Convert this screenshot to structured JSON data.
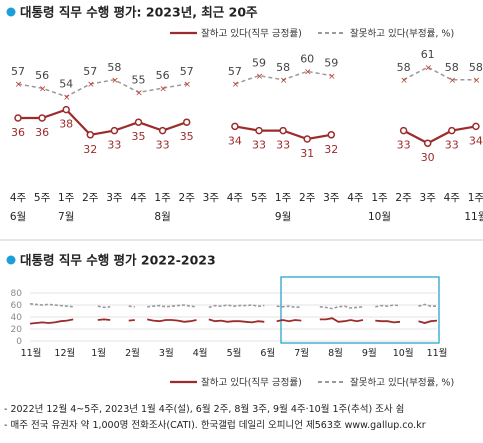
{
  "chart_data": [
    {
      "type": "line",
      "title": "대통령 직무 수행 평가: 2023년, 최근 20주",
      "x": [
        "4주",
        "5주",
        "1주",
        "2주",
        "3주",
        "4주",
        "1주",
        "2주",
        "3주",
        "4주",
        "5주",
        "1주",
        "2주",
        "3주",
        "4주",
        "1주",
        "2주",
        "3주",
        "4주",
        "1주"
      ],
      "x_months": [
        {
          "label": "6월",
          "index": 0
        },
        {
          "label": "7월",
          "index": 2
        },
        {
          "label": "8월",
          "index": 6
        },
        {
          "label": "9월",
          "index": 11
        },
        {
          "label": "10월",
          "index": 15
        },
        {
          "label": "11월",
          "index": 19
        }
      ],
      "series": [
        {
          "name": "잘하고 있다(직무 긍정률)",
          "color": "#9c2b2b",
          "style": "solid",
          "values": [
            36,
            36,
            38,
            32,
            33,
            35,
            33,
            35,
            null,
            34,
            33,
            33,
            31,
            32,
            null,
            null,
            33,
            30,
            33,
            34
          ]
        },
        {
          "name": "잘못하고 있다(부정률, %)",
          "color": "#9a9a9a",
          "style": "dashed",
          "values": [
            57,
            56,
            54,
            57,
            58,
            55,
            56,
            57,
            null,
            57,
            59,
            58,
            60,
            59,
            null,
            null,
            58,
            61,
            58,
            58
          ]
        }
      ]
    },
    {
      "type": "line",
      "title": "대통령 직무 수행 평가 2022-2023",
      "x_ticks": [
        "11월",
        "12월",
        "1월",
        "2월",
        "3월",
        "4월",
        "5월",
        "6월",
        "7월",
        "8월",
        "9월",
        "10월",
        "11월"
      ],
      "ylim": [
        0,
        80
      ],
      "y_ticks": [
        0,
        20,
        40,
        60,
        80
      ],
      "grid": true,
      "highlight": "최근 20주",
      "series": [
        {
          "name": "잘하고 있다(직무 긍정률)",
          "color": "#9c2b2b",
          "style": "solid",
          "values": [
            29,
            30,
            31,
            30,
            31,
            33,
            34,
            36,
            null,
            36,
            null,
            35,
            36,
            35,
            null,
            null,
            34,
            35,
            null,
            36,
            34,
            33,
            35,
            35,
            34,
            32,
            33,
            35,
            null,
            36,
            33,
            34,
            32,
            33,
            33,
            32,
            31,
            33,
            32,
            null,
            33,
            35,
            33,
            35,
            34,
            null,
            null,
            36,
            36,
            38,
            32,
            33,
            35,
            33,
            35,
            null,
            34,
            33,
            33,
            31,
            32,
            null,
            null,
            33,
            30,
            33,
            34
          ]
        },
        {
          "name": "잘못하고 있다(부정률, %)",
          "color": "#9a9a9a",
          "style": "dashed",
          "values": [
            62,
            61,
            60,
            61,
            60,
            59,
            58,
            57,
            null,
            55,
            null,
            58,
            56,
            57,
            null,
            null,
            58,
            57,
            null,
            57,
            58,
            59,
            57,
            58,
            59,
            60,
            58,
            57,
            null,
            56,
            59,
            58,
            60,
            58,
            59,
            59,
            60,
            58,
            59,
            null,
            58,
            57,
            58,
            56,
            57,
            null,
            null,
            57,
            56,
            54,
            57,
            58,
            55,
            56,
            57,
            null,
            57,
            59,
            58,
            60,
            59,
            null,
            null,
            58,
            61,
            58,
            58
          ]
        }
      ]
    }
  ],
  "legend": {
    "pos_label": "잘하고 있다(직무 긍정률)",
    "neg_label": "잘못하고 있다(부정률, %)"
  },
  "footnotes": [
    "- 2022년 12월 4~5주, 2023년 1월 4주(설), 6월 2주, 8월 3주, 9월 4주·10월 1주(추석) 조사 쉼",
    "- 매주 전국 유권자 약 1,000명 전화조사(CATI). 한국갤럽 데일리 오피니언 제563호 www.gallup.co.kr"
  ],
  "colors": {
    "accent": "#1a9fd8",
    "positive": "#9c2b2b",
    "negative": "#9a9a9a",
    "highlight_box": "#2aa6c8"
  }
}
